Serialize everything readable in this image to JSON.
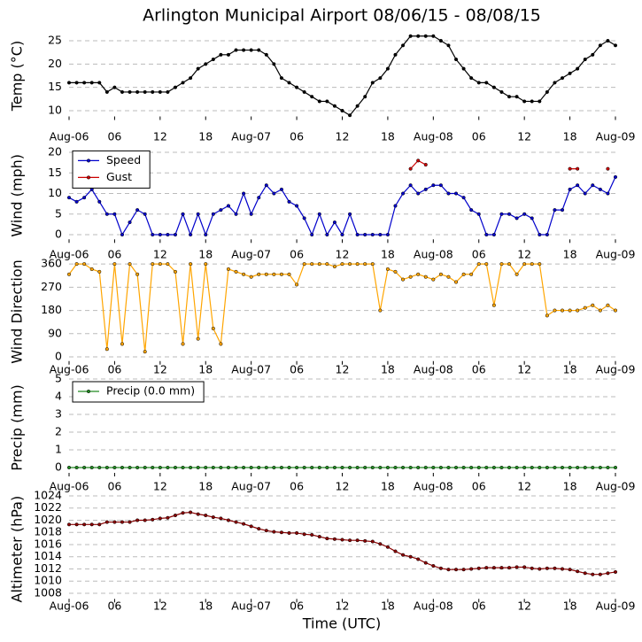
{
  "title": "Arlington Municipal Airport 08/06/15 - 08/08/15",
  "xlabel": "Time (UTC)",
  "chart_data": [
    {
      "type": "line",
      "ylabel": "Temp (°C)",
      "grid": true,
      "x": [
        0,
        1,
        2,
        3,
        4,
        5,
        6,
        7,
        8,
        9,
        10,
        11,
        12,
        13,
        14,
        15,
        16,
        17,
        18,
        19,
        20,
        21,
        22,
        23,
        24,
        25,
        26,
        27,
        28,
        29,
        30,
        31,
        32,
        33,
        34,
        35,
        36,
        37,
        38,
        39,
        40,
        41,
        42,
        43,
        44,
        45,
        46,
        47,
        48,
        49,
        50,
        51,
        52,
        53,
        54,
        55,
        56,
        57,
        58,
        59,
        60,
        61,
        62,
        63,
        64,
        65,
        66,
        67,
        68,
        69,
        70,
        71,
        72
      ],
      "xlim": [
        0,
        72
      ],
      "xticks": [
        {
          "value": 0,
          "label": "Aug-06"
        },
        {
          "value": 6,
          "label": "06"
        },
        {
          "value": 12,
          "label": "12"
        },
        {
          "value": 18,
          "label": "18"
        },
        {
          "value": 24,
          "label": "Aug-07"
        },
        {
          "value": 30,
          "label": "06"
        },
        {
          "value": 36,
          "label": "12"
        },
        {
          "value": 42,
          "label": "18"
        },
        {
          "value": 48,
          "label": "Aug-08"
        },
        {
          "value": 54,
          "label": "06"
        },
        {
          "value": 60,
          "label": "12"
        },
        {
          "value": 66,
          "label": "18"
        },
        {
          "value": 72,
          "label": "Aug-09"
        }
      ],
      "ylim": [
        8,
        27
      ],
      "yticks": [
        10,
        15,
        20,
        25
      ],
      "color": "#000000",
      "values": [
        16,
        16,
        16,
        16,
        16,
        14,
        15,
        14,
        14,
        14,
        14,
        14,
        14,
        14,
        15,
        16,
        17,
        19,
        20,
        21,
        22,
        22,
        23,
        23,
        23,
        23,
        22,
        20,
        17,
        16,
        15,
        14,
        13,
        12,
        12,
        11,
        10,
        9,
        11,
        13,
        16,
        17,
        19,
        22,
        24,
        26,
        26,
        26,
        26,
        25,
        24,
        21,
        19,
        17,
        16,
        16,
        15,
        14,
        13,
        13,
        12,
        12,
        12,
        14,
        16,
        17,
        18,
        19,
        21,
        22,
        24,
        25,
        24
      ]
    },
    {
      "type": "line",
      "ylabel": "Wind (mph)",
      "grid": true,
      "legend": "upper left",
      "x": [
        0,
        1,
        2,
        3,
        4,
        5,
        6,
        7,
        8,
        9,
        10,
        11,
        12,
        13,
        14,
        15,
        16,
        17,
        18,
        19,
        20,
        21,
        22,
        23,
        24,
        25,
        26,
        27,
        28,
        29,
        30,
        31,
        32,
        33,
        34,
        35,
        36,
        37,
        38,
        39,
        40,
        41,
        42,
        43,
        44,
        45,
        46,
        47,
        48,
        49,
        50,
        51,
        52,
        53,
        54,
        55,
        56,
        57,
        58,
        59,
        60,
        61,
        62,
        63,
        64,
        65,
        66,
        67,
        68,
        69,
        70,
        71,
        72
      ],
      "xlim": [
        0,
        72
      ],
      "xticks": [
        {
          "value": 0,
          "label": "Aug-06"
        },
        {
          "value": 6,
          "label": "06"
        },
        {
          "value": 12,
          "label": "12"
        },
        {
          "value": 18,
          "label": "18"
        },
        {
          "value": 24,
          "label": "Aug-07"
        },
        {
          "value": 30,
          "label": "06"
        },
        {
          "value": 36,
          "label": "12"
        },
        {
          "value": 42,
          "label": "18"
        },
        {
          "value": 48,
          "label": "Aug-08"
        },
        {
          "value": 54,
          "label": "06"
        },
        {
          "value": 60,
          "label": "12"
        },
        {
          "value": 66,
          "label": "18"
        },
        {
          "value": 72,
          "label": "Aug-09"
        }
      ],
      "ylim": [
        -2,
        21
      ],
      "yticks": [
        0,
        5,
        10,
        15,
        20
      ],
      "series": [
        {
          "name": "Speed",
          "color": "#0000cc",
          "values": [
            9,
            8,
            9,
            11,
            8,
            5,
            5,
            0,
            3,
            6,
            5,
            0,
            0,
            0,
            0,
            5,
            0,
            5,
            0,
            5,
            6,
            7,
            5,
            10,
            5,
            9,
            12,
            10,
            11,
            8,
            7,
            4,
            0,
            5,
            0,
            3,
            0,
            5,
            0,
            0,
            0,
            0,
            0,
            7,
            10,
            12,
            10,
            11,
            12,
            12,
            10,
            10,
            9,
            6,
            5,
            0,
            0,
            5,
            5,
            4,
            5,
            4,
            0,
            0,
            6,
            6,
            11,
            12,
            10,
            12,
            11,
            10,
            14
          ]
        },
        {
          "name": "Gust",
          "color": "#cc0000",
          "values": [
            null,
            null,
            null,
            null,
            null,
            null,
            null,
            null,
            null,
            null,
            null,
            null,
            null,
            null,
            null,
            null,
            null,
            null,
            null,
            null,
            null,
            null,
            null,
            null,
            null,
            null,
            null,
            null,
            null,
            null,
            null,
            null,
            null,
            null,
            null,
            null,
            null,
            null,
            null,
            null,
            null,
            null,
            null,
            null,
            null,
            16,
            18,
            17,
            null,
            null,
            null,
            null,
            null,
            null,
            null,
            null,
            null,
            null,
            null,
            null,
            null,
            null,
            null,
            null,
            null,
            null,
            16,
            16,
            null,
            null,
            null,
            16,
            null
          ]
        }
      ]
    },
    {
      "type": "line",
      "ylabel": "Wind Direction",
      "grid": true,
      "x": [
        0,
        1,
        2,
        3,
        4,
        5,
        6,
        7,
        8,
        9,
        10,
        11,
        12,
        13,
        14,
        15,
        16,
        17,
        18,
        19,
        20,
        21,
        22,
        23,
        24,
        25,
        26,
        27,
        28,
        29,
        30,
        31,
        32,
        33,
        34,
        35,
        36,
        37,
        38,
        39,
        40,
        41,
        42,
        43,
        44,
        45,
        46,
        47,
        48,
        49,
        50,
        51,
        52,
        53,
        54,
        55,
        56,
        57,
        58,
        59,
        60,
        61,
        62,
        63,
        64,
        65,
        66,
        67,
        68,
        69,
        70,
        71,
        72
      ],
      "xlim": [
        0,
        72
      ],
      "xticks": [
        {
          "value": 0,
          "label": "Aug-06"
        },
        {
          "value": 6,
          "label": "06"
        },
        {
          "value": 12,
          "label": "12"
        },
        {
          "value": 18,
          "label": "18"
        },
        {
          "value": 24,
          "label": "Aug-07"
        },
        {
          "value": 30,
          "label": "06"
        },
        {
          "value": 36,
          "label": "12"
        },
        {
          "value": 42,
          "label": "18"
        },
        {
          "value": 48,
          "label": "Aug-08"
        },
        {
          "value": 54,
          "label": "06"
        },
        {
          "value": 60,
          "label": "12"
        },
        {
          "value": 66,
          "label": "18"
        },
        {
          "value": 72,
          "label": "Aug-09"
        }
      ],
      "ylim": [
        -30,
        380
      ],
      "yticks": [
        0,
        90,
        180,
        270,
        360
      ],
      "color": "#ffa500",
      "values": [
        320,
        360,
        360,
        340,
        330,
        30,
        360,
        50,
        360,
        320,
        20,
        360,
        360,
        360,
        330,
        50,
        360,
        70,
        360,
        110,
        50,
        340,
        330,
        320,
        310,
        320,
        320,
        320,
        320,
        320,
        280,
        360,
        360,
        360,
        360,
        350,
        360,
        360,
        360,
        360,
        360,
        180,
        340,
        330,
        300,
        310,
        320,
        310,
        300,
        320,
        310,
        290,
        320,
        320,
        360,
        360,
        200,
        360,
        360,
        320,
        360,
        360,
        360,
        160,
        180,
        180,
        180,
        180,
        190,
        200,
        180,
        200,
        180
      ]
    },
    {
      "type": "line",
      "ylabel": "Precip (mm)",
      "grid": true,
      "legend": "upper left",
      "x": [
        0,
        1,
        2,
        3,
        4,
        5,
        6,
        7,
        8,
        9,
        10,
        11,
        12,
        13,
        14,
        15,
        16,
        17,
        18,
        19,
        20,
        21,
        22,
        23,
        24,
        25,
        26,
        27,
        28,
        29,
        30,
        31,
        32,
        33,
        34,
        35,
        36,
        37,
        38,
        39,
        40,
        41,
        42,
        43,
        44,
        45,
        46,
        47,
        48,
        49,
        50,
        51,
        52,
        53,
        54,
        55,
        56,
        57,
        58,
        59,
        60,
        61,
        62,
        63,
        64,
        65,
        66,
        67,
        68,
        69,
        70,
        71,
        72
      ],
      "xlim": [
        0,
        72
      ],
      "xticks": [
        {
          "value": 0,
          "label": "Aug-06"
        },
        {
          "value": 6,
          "label": "06"
        },
        {
          "value": 12,
          "label": "12"
        },
        {
          "value": 18,
          "label": "18"
        },
        {
          "value": 24,
          "label": "Aug-07"
        },
        {
          "value": 30,
          "label": "06"
        },
        {
          "value": 36,
          "label": "12"
        },
        {
          "value": 42,
          "label": "18"
        },
        {
          "value": 48,
          "label": "Aug-08"
        },
        {
          "value": 54,
          "label": "06"
        },
        {
          "value": 60,
          "label": "12"
        },
        {
          "value": 66,
          "label": "18"
        },
        {
          "value": 72,
          "label": "Aug-09"
        }
      ],
      "ylim": [
        -0.5,
        5
      ],
      "yticks": [
        0,
        1,
        2,
        3,
        4,
        5
      ],
      "series": [
        {
          "name": "Precip (0.0 mm)",
          "color": "#228b22",
          "values": [
            0,
            0,
            0,
            0,
            0,
            0,
            0,
            0,
            0,
            0,
            0,
            0,
            0,
            0,
            0,
            0,
            0,
            0,
            0,
            0,
            0,
            0,
            0,
            0,
            0,
            0,
            0,
            0,
            0,
            0,
            0,
            0,
            0,
            0,
            0,
            0,
            0,
            0,
            0,
            0,
            0,
            0,
            0,
            0,
            0,
            0,
            0,
            0,
            0,
            0,
            0,
            0,
            0,
            0,
            0,
            0,
            0,
            0,
            0,
            0,
            0,
            0,
            0,
            0,
            0,
            0,
            0,
            0,
            0,
            0,
            0,
            0,
            0
          ]
        }
      ]
    },
    {
      "type": "line",
      "ylabel": "Altimeter (hPa)",
      "grid": true,
      "x": [
        0,
        1,
        2,
        3,
        4,
        5,
        6,
        7,
        8,
        9,
        10,
        11,
        12,
        13,
        14,
        15,
        16,
        17,
        18,
        19,
        20,
        21,
        22,
        23,
        24,
        25,
        26,
        27,
        28,
        29,
        30,
        31,
        32,
        33,
        34,
        35,
        36,
        37,
        38,
        39,
        40,
        41,
        42,
        43,
        44,
        45,
        46,
        47,
        48,
        49,
        50,
        51,
        52,
        53,
        54,
        55,
        56,
        57,
        58,
        59,
        60,
        61,
        62,
        63,
        64,
        65,
        66,
        67,
        68,
        69,
        70,
        71,
        72
      ],
      "xlim": [
        0,
        72
      ],
      "xticks": [
        {
          "value": 0,
          "label": "Aug-06"
        },
        {
          "value": 6,
          "label": "06"
        },
        {
          "value": 12,
          "label": "12"
        },
        {
          "value": 18,
          "label": "18"
        },
        {
          "value": 24,
          "label": "Aug-07"
        },
        {
          "value": 30,
          "label": "06"
        },
        {
          "value": 36,
          "label": "12"
        },
        {
          "value": 42,
          "label": "18"
        },
        {
          "value": 48,
          "label": "Aug-08"
        },
        {
          "value": 54,
          "label": "06"
        },
        {
          "value": 60,
          "label": "12"
        },
        {
          "value": 66,
          "label": "18"
        },
        {
          "value": 72,
          "label": "Aug-09"
        }
      ],
      "ylim": [
        1006.5,
        1024
      ],
      "yticks": [
        1008,
        1010,
        1012,
        1014,
        1016,
        1018,
        1020,
        1022,
        1024
      ],
      "color": "#8b0000",
      "values": [
        1019.3,
        1019.3,
        1019.3,
        1019.3,
        1019.3,
        1019.7,
        1019.7,
        1019.7,
        1019.7,
        1020,
        1020,
        1020.1,
        1020.3,
        1020.4,
        1020.8,
        1021.2,
        1021.3,
        1021,
        1020.8,
        1020.5,
        1020.3,
        1020,
        1019.7,
        1019.4,
        1019,
        1018.6,
        1018.3,
        1018.1,
        1018,
        1017.9,
        1017.9,
        1017.7,
        1017.6,
        1017.3,
        1017,
        1016.9,
        1016.8,
        1016.7,
        1016.7,
        1016.6,
        1016.5,
        1016.1,
        1015.6,
        1014.9,
        1014.3,
        1014,
        1013.6,
        1013,
        1012.5,
        1012.1,
        1011.9,
        1011.9,
        1011.9,
        1012,
        1012.1,
        1012.2,
        1012.2,
        1012.2,
        1012.2,
        1012.3,
        1012.3,
        1012.1,
        1012,
        1012.1,
        1012.1,
        1012,
        1011.9,
        1011.6,
        1011.3,
        1011.1,
        1011.1,
        1011.3,
        1011.5
      ]
    }
  ]
}
